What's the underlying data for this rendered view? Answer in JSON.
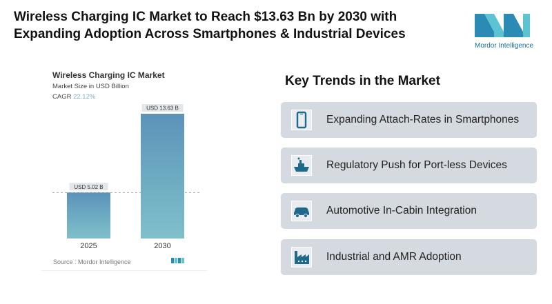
{
  "title": "Wireless Charging IC Market to Reach $13.63 Bn by 2030 with Expanding Adoption Across Smartphones & Industrial Devices",
  "logo": {
    "text": "Mordor Intelligence",
    "color": "#1b6f94"
  },
  "chart_data": {
    "type": "bar",
    "title": "Wireless Charging IC Market",
    "subtitle": "Market Size in USD Billion",
    "cagr_label": "CAGR",
    "cagr_value": "22.12%",
    "categories": [
      "2025",
      "2030"
    ],
    "values": [
      5.02,
      13.63
    ],
    "data_labels": [
      "USD 5.02 B",
      "USD 13.63 B"
    ],
    "ylim": [
      0,
      15
    ],
    "grid": false,
    "source": "Source : Mordor Intelligence",
    "bar_color_top": "#5b93b9",
    "bar_color_bottom": "#7fc0cb"
  },
  "trends": {
    "heading": "Key Trends in the Market",
    "items": [
      {
        "label": "Expanding Attach-Rates in Smartphones",
        "icon": "smartphone-icon"
      },
      {
        "label": "Regulatory Push for Port-less Devices",
        "icon": "ship-icon"
      },
      {
        "label": "Automotive In-Cabin Integration",
        "icon": "car-icon"
      },
      {
        "label": "Industrial and AMR Adoption",
        "icon": "factory-icon"
      }
    ],
    "icon_color": "#1f6a8c",
    "card_color": "#d5dae0"
  }
}
